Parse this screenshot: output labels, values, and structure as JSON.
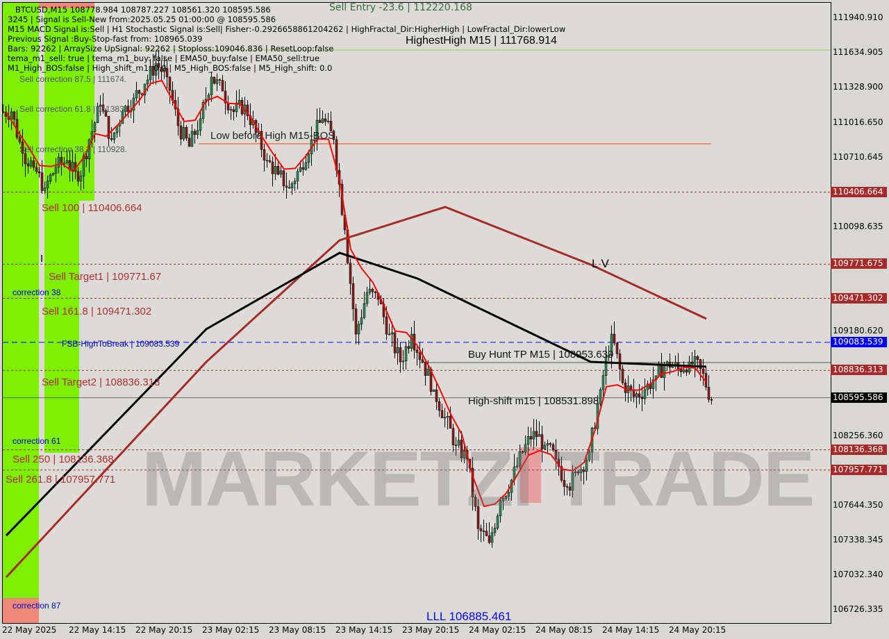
{
  "header": {
    "line1": "BTCUSD,M15  108778.984 108787.227 108561.320 108595.586",
    "line2": "3245 | Signal is Sell-New from:2025.05.25 01:00:00 @ 108595.586",
    "line3": "M15 MACD Signal is:Sell | H1 Stochastic Signal is:Sell| Fisher:-0.2926658861204262 | HighFractal_Dir:HigherHigh | LowFractal_Dir:lowerLow",
    "line4": "Previous Signal :Buy-Stop-fast from: 108965.039",
    "line5": "Bars: 92262 | ArraySize UpSignal: 92262 | Stoploss:109046.836 | ResetLoop:false",
    "line6": "tema_m1_sell: true | tema_m1_buy: false | EMA50_buy:false | EMA50_sell:true",
    "line7": "M1_High_BOS:false | High_shift_m1: 0.0 | M5_High_BOS:false | M5_High_shift: 0.0"
  },
  "annotations": {
    "sell_entry": "Sell Entry -23.6 | 112220.168",
    "highest_high": "HighestHigh   M15 | 111768.914",
    "sell_corr_875": "Sell correction 87.5 | 111674.",
    "sell_corr_618": "Sell correction 61.8 | 111383",
    "sell_corr_382": "Sell correction 38.2 | 110928.",
    "low_before_high": "Low before High   M15-BOS",
    "sell_100": "Sell 100 | 110406.664",
    "i_mark": "I",
    "sell_target1": "Sell Target1 | 109771.67",
    "correction_38": "correction 38",
    "sell_1618": "Sell 161.8 | 109471.302",
    "fsb": "FSB-HighToBreak | 109083.539",
    "buy_hunt": "Buy Hunt TP M15 | 108953.639",
    "sell_target2": "Sell Target2 | 108836.313",
    "high_shift": "High-shift m15 | 108531.898",
    "correction_61": "correction 61",
    "sell_250": "Sell 250 | 108136.368",
    "sell_2618": "Sell  261.8 | 107957.771",
    "lv": "L V",
    "ll": "LLL 106885.461",
    "correction_87": "correction 87",
    "watermark": "MARKETZI TRADE"
  },
  "chart_data": {
    "type": "candlestick",
    "symbol": "BTCUSD",
    "timeframe": "M15",
    "ylim": [
      106600,
      112300
    ],
    "grid": false,
    "y_ticks": [
      "111940.910",
      "111634.905",
      "111328.900",
      "111016.650",
      "110710.645",
      "110098.635",
      "109180.620",
      "108256.360",
      "107644.350",
      "107338.345",
      "107032.340",
      "106726.335"
    ],
    "x_ticks": [
      "22 May 2025",
      "22 May 14:15",
      "22 May 20:15",
      "23 May 02:15",
      "23 May 08:15",
      "23 May 14:15",
      "23 May 20:15",
      "24 May 02:15",
      "24 May 08:15",
      "24 May 14:15",
      "24 May 20:15"
    ],
    "hourly_close_approx": [
      111115,
      110748,
      110625,
      110442,
      110625,
      110686,
      110503,
      110870,
      111176,
      110870,
      111115,
      111237,
      111360,
      111543,
      111421,
      110992,
      110809,
      111054,
      111421,
      111298,
      111115,
      111176,
      110931,
      110686,
      110564,
      110442,
      110625,
      110870,
      111054,
      110870,
      110074,
      109156,
      109523,
      109462,
      109156,
      108911,
      109156,
      108911,
      108666,
      108422,
      108177,
      108055,
      107442,
      107319,
      107687,
      107871,
      108116,
      108300,
      108177,
      108055,
      107810,
      107932,
      108116,
      108666,
      109156,
      108727,
      108605,
      108666,
      108789,
      108911,
      108850,
      108911,
      108850,
      108575
    ],
    "ma_black": [
      [
        0,
        107381
      ],
      [
        18,
        109200
      ],
      [
        30,
        109872
      ],
      [
        37,
        109646
      ],
      [
        52.6,
        108911
      ],
      [
        63,
        108869
      ]
    ],
    "ma_brown": [
      [
        0,
        107014
      ],
      [
        18,
        108911
      ],
      [
        30,
        109983
      ],
      [
        39.5,
        110276
      ],
      [
        52.6,
        109768
      ],
      [
        63,
        109291
      ]
    ],
    "levels": [
      {
        "price": 110406.664,
        "label": "110406.664",
        "color": "#a52a2a",
        "style": "dotted"
      },
      {
        "price": 109771.675,
        "label": "109771.675",
        "color": "#a52a2a",
        "style": "dotted"
      },
      {
        "price": 109471.302,
        "label": "109471.302",
        "color": "#a52a2a",
        "style": "dotted"
      },
      {
        "price": 109083.539,
        "label": "109083.539",
        "color": "#0000ff",
        "style": "dashed"
      },
      {
        "price": 108836.313,
        "label": "108836.313",
        "color": "#a52a2a",
        "style": "dotted"
      },
      {
        "price": 108595.586,
        "label": "108595.586",
        "color": "#000000",
        "style": "solid"
      },
      {
        "price": 108136.368,
        "label": "108136.368",
        "color": "#a52a2a",
        "style": "dotted"
      },
      {
        "price": 107957.771,
        "label": "107957.771",
        "color": "#a52a2a",
        "style": "dotted"
      }
    ],
    "colors": {
      "bull": "#2e8b57",
      "bear": "#8b1a1a",
      "ema_fast": "#ff0000",
      "zone_green": "#7cf000",
      "zone_pink": "#f08878"
    }
  }
}
